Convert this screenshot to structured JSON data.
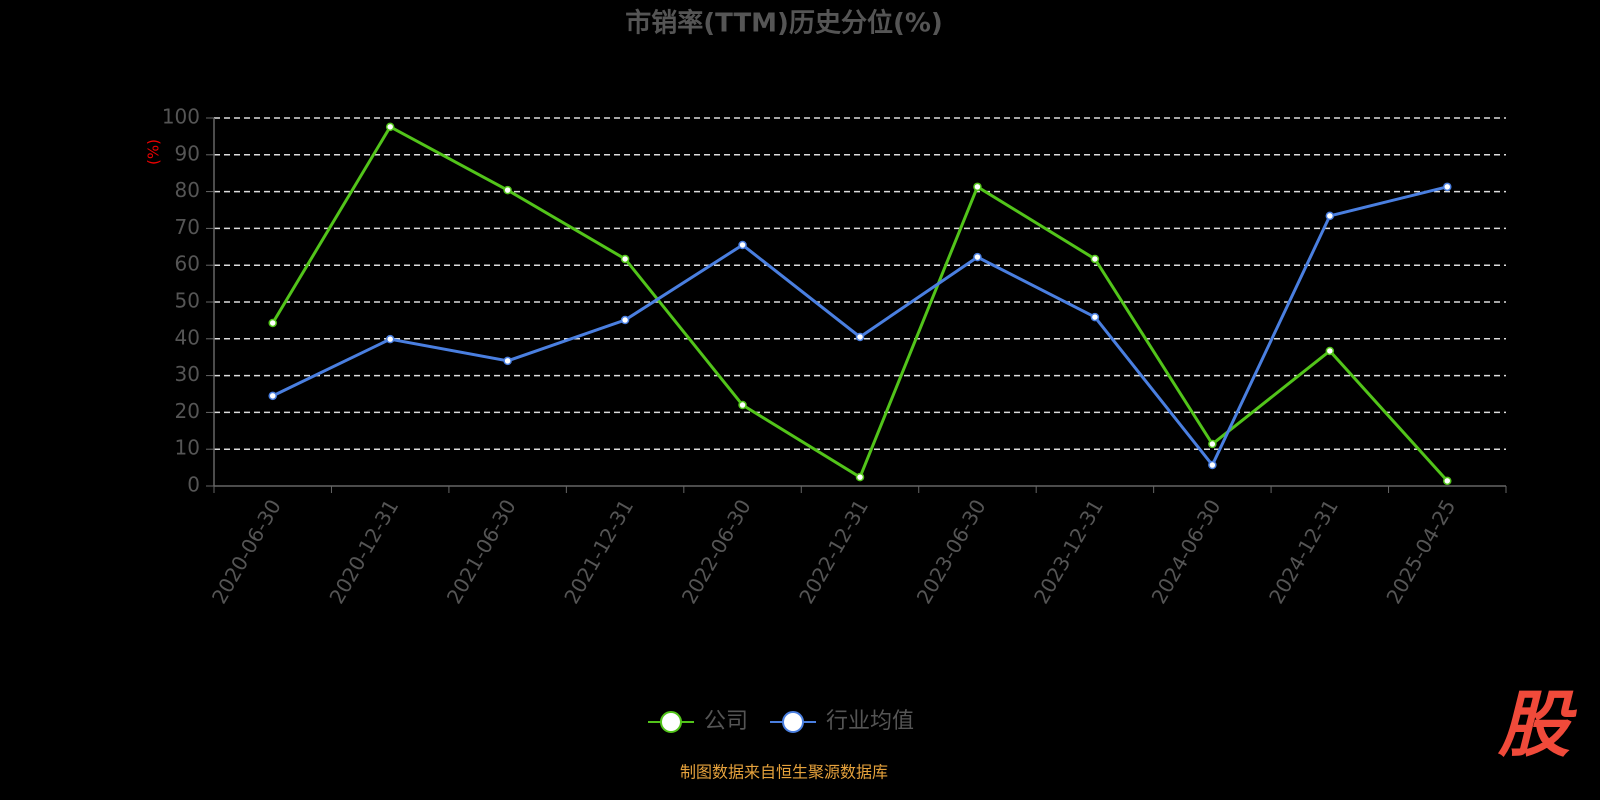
{
  "chart_data": {
    "type": "line",
    "title": "市销率(TTM)历史分位(%)",
    "y_label": "(%)",
    "categories": [
      "2020-06-30",
      "2020-12-31",
      "2021-06-30",
      "2021-12-31",
      "2022-06-30",
      "2022-12-31",
      "2023-06-30",
      "2023-12-31",
      "2024-06-30",
      "2024-12-31",
      "2025-04-25"
    ],
    "series": [
      {
        "name": "公司",
        "color": "#52c41a",
        "values": [
          44.3,
          97.6,
          80.4,
          61.7,
          22.0,
          2.4,
          81.3,
          61.7,
          11.4,
          36.7,
          1.4
        ]
      },
      {
        "name": "行业均值",
        "color": "#4a7fe0",
        "values": [
          24.5,
          39.9,
          34.0,
          45.1,
          65.5,
          40.5,
          62.2,
          45.9,
          5.7,
          73.4,
          81.3
        ]
      }
    ],
    "ylim": [
      0,
      100
    ],
    "yticks": [
      0,
      10,
      20,
      30,
      40,
      50,
      60,
      70,
      80,
      90,
      100
    ],
    "grid": true,
    "legend": "bottom",
    "source": "制图数据来自恒生聚源数据库",
    "logo": "股"
  }
}
